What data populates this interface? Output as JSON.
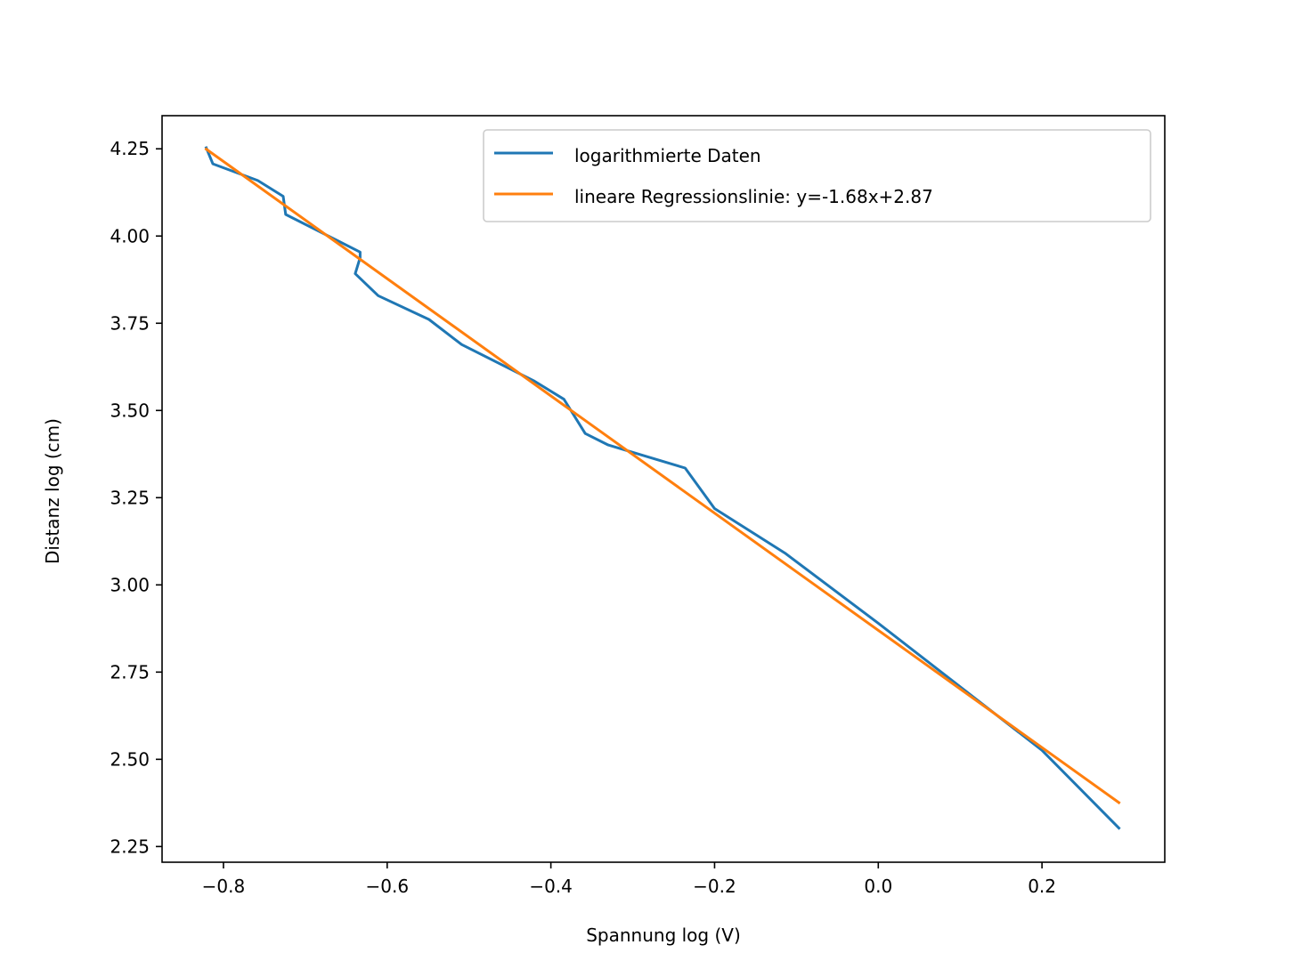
{
  "chart_data": {
    "type": "line",
    "title": "",
    "xlabel": "Spannung log (V)",
    "ylabel": "Distanz log (cm)",
    "xlim": [
      -0.875,
      0.35
    ],
    "ylim": [
      2.205,
      4.345
    ],
    "xticks": [
      -0.8,
      -0.6,
      -0.4,
      -0.2,
      0.0,
      0.2
    ],
    "xtick_labels": [
      "−0.8",
      "−0.6",
      "−0.4",
      "−0.2",
      "0.0",
      "0.2"
    ],
    "yticks": [
      2.25,
      2.5,
      2.75,
      3.0,
      3.25,
      3.5,
      3.75,
      4.0,
      4.25
    ],
    "ytick_labels": [
      "2.25",
      "2.50",
      "2.75",
      "3.00",
      "3.25",
      "3.50",
      "3.75",
      "4.00",
      "4.25"
    ],
    "grid": false,
    "legend_position": "top-right",
    "series": [
      {
        "name": "logarithmierte Daten",
        "color": "#1f77b4",
        "x": [
          -0.821,
          -0.813,
          -0.758,
          -0.727,
          -0.724,
          -0.633,
          -0.633,
          -0.639,
          -0.611,
          -0.549,
          -0.509,
          -0.42,
          -0.384,
          -0.358,
          -0.33,
          -0.236,
          -0.2,
          -0.114,
          0.0,
          0.2,
          0.294
        ],
        "y": [
          4.253,
          4.207,
          4.159,
          4.114,
          4.062,
          3.954,
          3.938,
          3.892,
          3.829,
          3.761,
          3.689,
          3.584,
          3.532,
          3.434,
          3.401,
          3.335,
          3.219,
          3.091,
          2.89,
          2.526,
          2.303
        ]
      },
      {
        "name": "lineare Regressionslinie: y=-1.68x+2.87",
        "color": "#ff7f0e",
        "x": [
          -0.821,
          0.294
        ],
        "y": [
          4.249,
          2.376
        ]
      }
    ]
  }
}
